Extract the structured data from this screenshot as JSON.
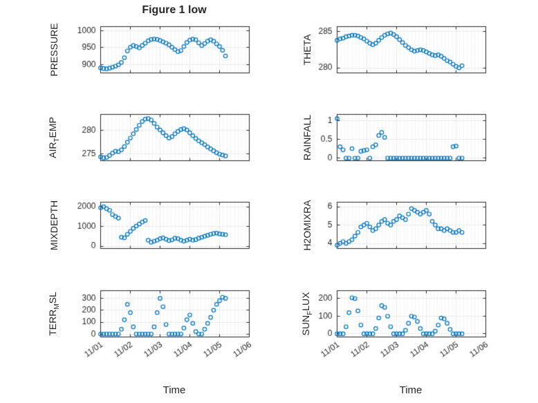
{
  "figure": {
    "title": "Figure 1 low",
    "xlabel": "Time",
    "marker_color": "#0072BD",
    "axis_color": "#262626",
    "grid_major_color": "#c9c9c9",
    "grid_minor_color": "#e3e3e3",
    "x_axis": {
      "lim": [
        0,
        5
      ],
      "ticks": [
        0,
        1,
        2,
        3,
        4,
        5
      ],
      "tick_labels": [
        "11/01",
        "11/02",
        "11/03",
        "11/04",
        "11/05",
        "11/06"
      ],
      "values": [
        0,
        0.1,
        0.2,
        0.3,
        0.4,
        0.5,
        0.6,
        0.7,
        0.8,
        0.9,
        1,
        1.1,
        1.2,
        1.3,
        1.4,
        1.5,
        1.6,
        1.7,
        1.8,
        1.9,
        2,
        2.1,
        2.2,
        2.3,
        2.4,
        2.5,
        2.6,
        2.7,
        2.8,
        2.9,
        3,
        3.1,
        3.2,
        3.3,
        3.4,
        3.5,
        3.6,
        3.7,
        3.8,
        3.9,
        4,
        4.1,
        4.2
      ]
    }
  },
  "chart_data": [
    {
      "name": "pressure",
      "type": "scatter",
      "ylabel": "PRESSURE",
      "ylim": [
        875,
        1012
      ],
      "yticks": [
        900,
        950,
        1000
      ],
      "ytick_labels": [
        "900",
        "950",
        "1000"
      ],
      "show_x_labels": false,
      "y": [
        890,
        888,
        887,
        889,
        892,
        895,
        899,
        906,
        920,
        940,
        951,
        956,
        953,
        949,
        956,
        963,
        970,
        974,
        975,
        974,
        971,
        967,
        963,
        958,
        951,
        944,
        938,
        941,
        953,
        965,
        972,
        975,
        973,
        964,
        956,
        962,
        969,
        973,
        969,
        961,
        953,
        942,
        925
      ]
    },
    {
      "name": "theta",
      "type": "scatter",
      "ylabel": "THETA",
      "ylim": [
        279.3,
        285.7
      ],
      "yticks": [
        280,
        285
      ],
      "ytick_labels": [
        "280",
        "285"
      ],
      "show_x_labels": false,
      "y": [
        283.8,
        284,
        284.1,
        284.3,
        284.4,
        284.5,
        284.5,
        284.4,
        284.2,
        284,
        283.7,
        283.4,
        283.2,
        283.4,
        283.8,
        284.2,
        284.5,
        284.7,
        284.8,
        284.6,
        284.3,
        283.9,
        283.5,
        283.1,
        282.8,
        282.5,
        282.3,
        282.4,
        282.5,
        282.4,
        282.2,
        282,
        281.8,
        281.7,
        281.8,
        281.6,
        281.3,
        281,
        280.8,
        280.5,
        280.2,
        280,
        280.3
      ]
    },
    {
      "name": "air-temp",
      "type": "scatter",
      "ylabel": "AIR_TEMP",
      "ylim": [
        273.6,
        283.4
      ],
      "yticks": [
        275,
        280
      ],
      "ytick_labels": [
        "275",
        "280"
      ],
      "show_x_labels": false,
      "y": [
        274.4,
        274.2,
        274.3,
        274.7,
        275.2,
        275.6,
        275.5,
        275.9,
        276.6,
        277.5,
        278.4,
        279.3,
        280.2,
        281.1,
        281.9,
        282.4,
        282.5,
        282.2,
        281.5,
        280.7,
        280.1,
        279.5,
        278.9,
        278.4,
        278.7,
        279.3,
        279.8,
        280.2,
        280.4,
        280.1,
        279.5,
        278.9,
        278.3,
        277.8,
        277.4,
        277,
        276.5,
        276.1,
        275.7,
        275.3,
        275,
        274.8,
        274.6
      ]
    },
    {
      "name": "rainfall",
      "type": "scatter",
      "ylabel": "RAINFALL",
      "ylim": [
        -0.07,
        1.16
      ],
      "yticks": [
        0,
        0.5,
        1
      ],
      "ytick_labels": [
        "0",
        "0.5",
        "1"
      ],
      "show_x_labels": false,
      "y": [
        1.05,
        0.3,
        0.22,
        0,
        0,
        0.25,
        0,
        0,
        0.18,
        0.2,
        0.22,
        0,
        0.3,
        0.35,
        0.6,
        0.68,
        0.55,
        0,
        0,
        0,
        0,
        0,
        0,
        0,
        0,
        0,
        0,
        0,
        0,
        0,
        0,
        0,
        0,
        0,
        0,
        0,
        0,
        0,
        0,
        0.3,
        0.32,
        0,
        0
      ]
    },
    {
      "name": "mixdepth",
      "type": "scatter",
      "ylabel": "MIXDEPTH",
      "ylim": [
        -120,
        2230
      ],
      "yticks": [
        0,
        1000,
        2000
      ],
      "ytick_labels": [
        "0",
        "1000",
        "2000"
      ],
      "show_x_labels": false,
      "y": [
        1950,
        2000,
        1900,
        1820,
        1600,
        1500,
        1420,
        450,
        420,
        600,
        750,
        900,
        1020,
        1120,
        1220,
        1300,
        300,
        200,
        250,
        300,
        380,
        420,
        350,
        280,
        320,
        400,
        380,
        300,
        250,
        300,
        350,
        300,
        330,
        400,
        450,
        500,
        550,
        600,
        640,
        660,
        620,
        600,
        580
      ]
    },
    {
      "name": "h2omixra",
      "type": "scatter",
      "ylabel": "H2OMIXRA",
      "ylim": [
        3.72,
        6.25
      ],
      "yticks": [
        4,
        5,
        6
      ],
      "ytick_labels": [
        "4",
        "5",
        "6"
      ],
      "show_x_labels": false,
      "y": [
        3.9,
        4,
        4.1,
        4,
        4.1,
        4.2,
        4.4,
        4.6,
        4.9,
        5,
        5.1,
        4.9,
        4.7,
        4.8,
        5,
        5.2,
        5.3,
        5.1,
        5,
        5.2,
        5.3,
        5.5,
        5.4,
        5.3,
        5.6,
        5.9,
        5.8,
        5.7,
        5.6,
        5.7,
        5.8,
        5.6,
        5.2,
        5,
        4.8,
        4.8,
        4.7,
        4.8,
        4.7,
        4.6,
        4.6,
        4.7,
        4.6
      ]
    },
    {
      "name": "terr-msl",
      "type": "scatter",
      "ylabel": "TERR_MSL",
      "ylim": [
        -25,
        365
      ],
      "yticks": [
        0,
        100,
        200,
        300
      ],
      "ytick_labels": [
        "0",
        "100",
        "200",
        "300"
      ],
      "show_x_labels": true,
      "y": [
        0,
        0,
        0,
        0,
        0,
        0,
        0,
        40,
        120,
        250,
        180,
        60,
        0,
        0,
        0,
        0,
        0,
        0,
        60,
        180,
        300,
        230,
        80,
        0,
        0,
        0,
        0,
        0,
        50,
        120,
        160,
        90,
        20,
        0,
        0,
        40,
        90,
        140,
        200,
        250,
        280,
        310,
        300
      ]
    },
    {
      "name": "sun-flux",
      "type": "scatter",
      "ylabel": "SUN_FLUX",
      "ylim": [
        -18,
        245
      ],
      "yticks": [
        0,
        100,
        200
      ],
      "ytick_labels": [
        "0",
        "100",
        "200"
      ],
      "show_x_labels": true,
      "y": [
        0,
        0,
        0,
        40,
        120,
        205,
        200,
        130,
        50,
        0,
        0,
        0,
        0,
        30,
        90,
        160,
        150,
        100,
        40,
        0,
        0,
        0,
        0,
        20,
        60,
        100,
        95,
        70,
        30,
        0,
        0,
        0,
        0,
        15,
        50,
        90,
        85,
        60,
        25,
        0,
        0,
        0,
        0
      ]
    }
  ]
}
